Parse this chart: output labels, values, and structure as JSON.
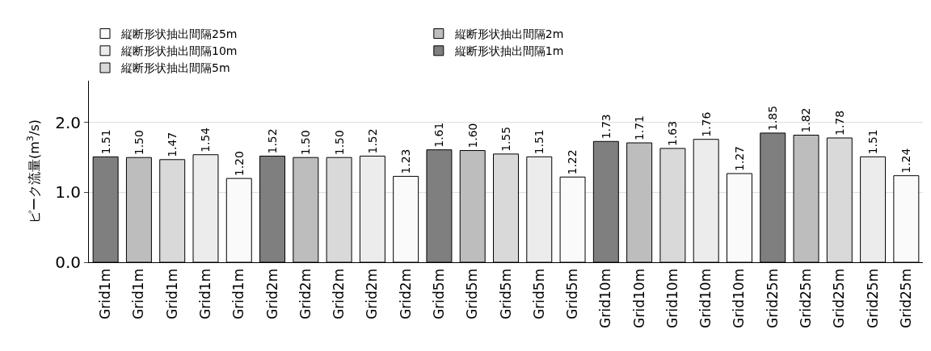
{
  "chart_data": {
    "type": "bar",
    "ylabel": "ピーク流量(m$^{3}$/s)",
    "categories": [
      "Grid1m",
      "Grid1m",
      "Grid1m",
      "Grid1m",
      "Grid1m",
      "Grid2m",
      "Grid2m",
      "Grid2m",
      "Grid2m",
      "Grid2m",
      "Grid5m",
      "Grid5m",
      "Grid5m",
      "Grid5m",
      "Grid5m",
      "Grid10m",
      "Grid10m",
      "Grid10m",
      "Grid10m",
      "Grid10m",
      "Grid25m",
      "Grid25m",
      "Grid25m",
      "Grid25m",
      "Grid25m"
    ],
    "series": [
      {
        "name": "縦断形状抽出間隔25m",
        "color": "#fafafa",
        "values": [
          null,
          null,
          null,
          null,
          1.2,
          null,
          null,
          null,
          null,
          1.23,
          null,
          null,
          null,
          null,
          1.22,
          null,
          null,
          null,
          null,
          1.27,
          null,
          null,
          null,
          null,
          1.24
        ],
        "value_labels": [
          null,
          null,
          null,
          null,
          "1.20",
          null,
          null,
          null,
          null,
          "1.23",
          null,
          null,
          null,
          null,
          "1.22",
          null,
          null,
          null,
          null,
          "1.27",
          null,
          null,
          null,
          null,
          "1.24"
        ]
      },
      {
        "name": "縦断形状抽出間隔2m",
        "color": "#bdbdbd",
        "values": [
          null,
          1.5,
          null,
          null,
          null,
          null,
          1.5,
          null,
          null,
          null,
          null,
          1.6,
          null,
          null,
          null,
          null,
          1.71,
          null,
          null,
          null,
          null,
          1.82,
          null,
          null,
          null
        ],
        "value_labels": [
          null,
          "1.50",
          null,
          null,
          null,
          null,
          "1.50",
          null,
          null,
          null,
          null,
          "1.60",
          null,
          null,
          null,
          null,
          "1.71",
          null,
          null,
          null,
          null,
          "1.82",
          null,
          null,
          null
        ]
      },
      {
        "name": "縦断形状抽出間隔10m",
        "color": "#ececec",
        "values": [
          null,
          null,
          null,
          1.54,
          null,
          null,
          null,
          null,
          1.52,
          null,
          null,
          null,
          null,
          1.51,
          null,
          null,
          null,
          null,
          1.76,
          null,
          null,
          null,
          null,
          1.51,
          null
        ],
        "value_labels": [
          null,
          null,
          null,
          "1.54",
          null,
          null,
          null,
          null,
          "1.52",
          null,
          null,
          null,
          null,
          "1.51",
          null,
          null,
          null,
          null,
          "1.76",
          null,
          null,
          null,
          null,
          "1.51",
          null
        ]
      },
      {
        "name": "縦断形状抽出間隔1m",
        "color": "#7f7f7f",
        "values": [
          1.51,
          null,
          null,
          null,
          null,
          1.52,
          null,
          null,
          null,
          null,
          1.61,
          null,
          null,
          null,
          null,
          1.73,
          null,
          null,
          null,
          null,
          1.85,
          null,
          null,
          null,
          null
        ],
        "value_labels": [
          "1.51",
          null,
          null,
          null,
          null,
          "1.52",
          null,
          null,
          null,
          null,
          "1.61",
          null,
          null,
          null,
          null,
          "1.73",
          null,
          null,
          null,
          null,
          "1.85",
          null,
          null,
          null,
          null
        ]
      },
      {
        "name": "縦断形状抽出間隔5m",
        "color": "#d9d9d9",
        "values": [
          null,
          null,
          1.47,
          null,
          null,
          null,
          null,
          1.5,
          null,
          null,
          null,
          null,
          1.55,
          null,
          null,
          null,
          null,
          1.63,
          null,
          null,
          null,
          null,
          1.78,
          null,
          null
        ],
        "value_labels": [
          null,
          null,
          "1.47",
          null,
          null,
          null,
          null,
          "1.50",
          null,
          null,
          null,
          null,
          "1.55",
          null,
          null,
          null,
          null,
          "1.63",
          null,
          null,
          null,
          null,
          "1.78",
          null,
          null
        ]
      }
    ],
    "ylim": [
      0,
      2.6
    ],
    "yticks": [
      {
        "value": 0,
        "label": "0.0"
      },
      {
        "value": 1,
        "label": "1.0"
      },
      {
        "value": 2,
        "label": "2.0"
      }
    ],
    "grid": "y",
    "legend": "top left"
  }
}
